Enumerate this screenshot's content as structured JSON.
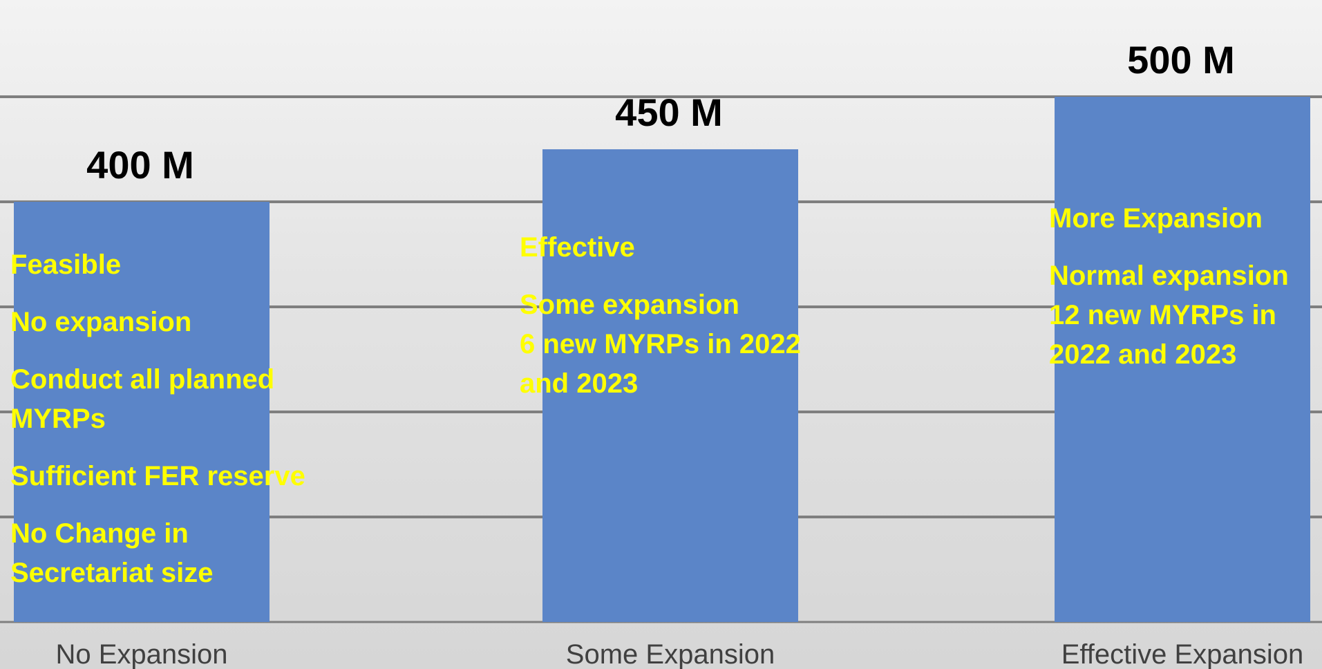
{
  "chart_data": {
    "type": "bar",
    "categories": [
      "No Expansion",
      "Some Expansion",
      "Effective Expansion"
    ],
    "values": [
      400,
      450,
      500
    ],
    "data_labels": [
      "400 M",
      "450 M",
      "500 M"
    ],
    "ylim": [
      0,
      500
    ],
    "grid": true,
    "bar_color": "#5b85c8",
    "title": "",
    "xlabel": "",
    "ylabel": ""
  },
  "annotations": [
    {
      "blocks": [
        [
          "Feasible"
        ],
        [
          "No expansion"
        ],
        [
          "Conduct all planned",
          "MYRPs"
        ],
        [
          "Sufficient FER reserve"
        ],
        [
          "No Change in",
          "Secretariat size"
        ]
      ]
    },
    {
      "blocks": [
        [
          "Effective"
        ],
        [
          "Some expansion",
          "6 new MYRPs in 2022",
          "and 2023"
        ]
      ]
    },
    {
      "blocks": [
        [
          "More Expansion"
        ],
        [
          "Normal expansion",
          "12 new MYRPs in",
          "2022 and 2023"
        ]
      ]
    }
  ],
  "colors": {
    "annotation_text": "#ffff00",
    "gridline": "#7f7f7f"
  }
}
